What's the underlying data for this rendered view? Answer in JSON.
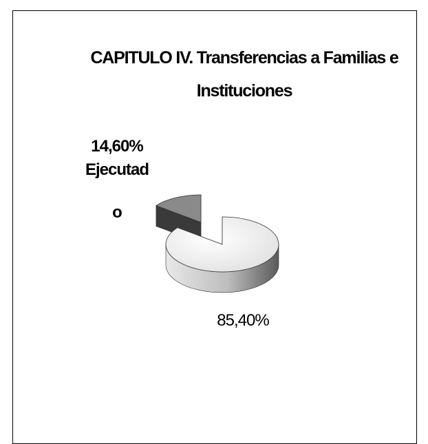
{
  "chart_data": {
    "type": "pie",
    "title": "CAPITULO IV. Transferencias a Familias e Instituciones",
    "categories": [
      "Ejecutado",
      null
    ],
    "values": [
      14.6,
      85.4
    ],
    "value_labels": [
      "14,60%",
      "85,40%"
    ],
    "colors": [
      "#8a8a8a",
      "#efefef"
    ]
  }
}
